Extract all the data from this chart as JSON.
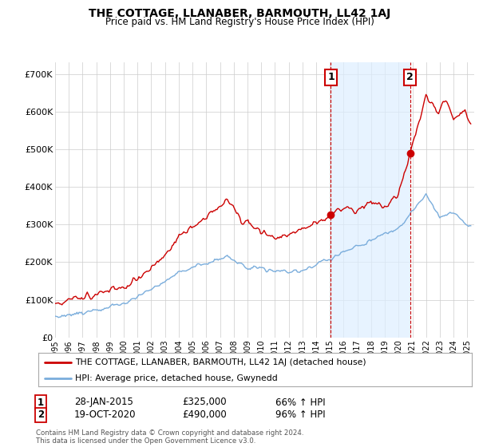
{
  "title": "THE COTTAGE, LLANABER, BARMOUTH, LL42 1AJ",
  "subtitle": "Price paid vs. HM Land Registry's House Price Index (HPI)",
  "ylabel_ticks": [
    "£0",
    "£100K",
    "£200K",
    "£300K",
    "£400K",
    "£500K",
    "£600K",
    "£700K"
  ],
  "ytick_values": [
    0,
    100000,
    200000,
    300000,
    400000,
    500000,
    600000,
    700000
  ],
  "ylim": [
    0,
    730000
  ],
  "xlim_start": 1995.0,
  "xlim_end": 2025.5,
  "red_color": "#cc0000",
  "blue_color": "#7aaddc",
  "shade_color": "#ddeeff",
  "marker1_x": 2015.07,
  "marker1_y": 325000,
  "marker2_x": 2020.83,
  "marker2_y": 490000,
  "legend_label1": "THE COTTAGE, LLANABER, BARMOUTH, LL42 1AJ (detached house)",
  "legend_label2": "HPI: Average price, detached house, Gwynedd",
  "table_row1": [
    "1",
    "28-JAN-2015",
    "£325,000",
    "66% ↑ HPI"
  ],
  "table_row2": [
    "2",
    "19-OCT-2020",
    "£490,000",
    "96% ↑ HPI"
  ],
  "footer": "Contains HM Land Registry data © Crown copyright and database right 2024.\nThis data is licensed under the Open Government Licence v3.0.",
  "background_color": "#ffffff",
  "grid_color": "#cccccc"
}
